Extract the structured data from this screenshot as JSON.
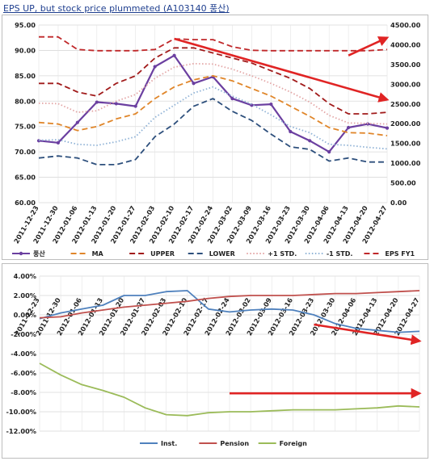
{
  "title": "EPS UP, but stock price plummeted (A103140 풍산)",
  "chart_data": [
    {
      "type": "line",
      "title": "",
      "dates": [
        "2011-12-23",
        "2011-12-30",
        "2012-01-06",
        "2012-01-13",
        "2012-01-20",
        "2012-01-27",
        "2012-02-03",
        "2012-02-10",
        "2012-02-17",
        "2012-02-24",
        "2012-03-02",
        "2012-03-09",
        "2012-03-16",
        "2012-03-23",
        "2012-03-30",
        "2012-04-06",
        "2012-04-13",
        "2012-04-20",
        "2012-04-27"
      ],
      "ylim": [
        60,
        95
      ],
      "yticks": [
        "60.00",
        "65.00",
        "70.00",
        "75.00",
        "80.00",
        "85.00",
        "90.00",
        "95.00"
      ],
      "y2lim": [
        0,
        4500
      ],
      "y2ticks": [
        "0.00",
        "500.00",
        "1000.00",
        "1500.00",
        "2000.00",
        "2500.00",
        "3000.00",
        "3500.00",
        "4000.00",
        "4500.00"
      ],
      "grid": true,
      "legend_position": "bottom",
      "series": [
        {
          "name": "풍산",
          "style": "solid-marker",
          "color": "#6b3fa0",
          "axis": "left",
          "values": [
            72.2,
            71.8,
            75.8,
            79.8,
            79.5,
            79.0,
            86.8,
            89.0,
            83.5,
            84.8,
            80.5,
            79.2,
            79.4,
            74.0,
            72.2,
            70.0,
            74.8,
            75.5,
            74.7
          ]
        },
        {
          "name": "MA",
          "style": "dash",
          "color": "#e0862a",
          "axis": "left",
          "values": [
            75.8,
            75.5,
            74.2,
            75.0,
            76.5,
            77.5,
            80.5,
            82.8,
            84.2,
            85.0,
            84.0,
            82.5,
            81.0,
            79.0,
            77.0,
            74.8,
            73.8,
            73.7,
            73.2
          ]
        },
        {
          "name": "UPPER",
          "style": "dash",
          "color": "#a11b1b",
          "axis": "left",
          "values": [
            83.5,
            83.5,
            81.8,
            81.0,
            83.5,
            85.0,
            88.5,
            90.5,
            90.5,
            89.5,
            88.5,
            87.5,
            86.0,
            84.5,
            82.5,
            79.5,
            77.5,
            77.5,
            77.8
          ]
        },
        {
          "name": "LOWER",
          "style": "dash",
          "color": "#2d4f7c",
          "axis": "left",
          "values": [
            68.8,
            69.2,
            68.8,
            67.5,
            67.5,
            68.5,
            73.0,
            75.5,
            79.0,
            80.5,
            78.0,
            76.2,
            73.5,
            71.0,
            70.5,
            68.2,
            68.8,
            68.0,
            68.0
          ]
        },
        {
          "name": "+1 STD.",
          "style": "dot",
          "color": "#e3a5a5",
          "axis": "left",
          "values": [
            79.6,
            79.5,
            77.8,
            78.1,
            80.0,
            81.3,
            84.5,
            86.7,
            87.4,
            87.3,
            86.3,
            85.0,
            83.5,
            81.8,
            79.8,
            77.2,
            75.7,
            75.6,
            75.5
          ]
        },
        {
          "name": "-1 STD.",
          "style": "dot",
          "color": "#8fb2d6",
          "axis": "left",
          "values": [
            72.3,
            72.4,
            71.5,
            71.3,
            72.0,
            73.0,
            76.8,
            79.2,
            81.6,
            82.8,
            81.0,
            79.4,
            77.3,
            75.0,
            73.8,
            71.5,
            71.3,
            70.9,
            70.6
          ]
        },
        {
          "name": "EPS FY1",
          "style": "dash",
          "color": "#c0282a",
          "axis": "right",
          "values": [
            4200,
            4200,
            3880,
            3850,
            3850,
            3850,
            3880,
            4150,
            4130,
            4130,
            3950,
            3860,
            3850,
            3850,
            3850,
            3850,
            3850,
            3850,
            3880
          ]
        }
      ],
      "annotations": [
        {
          "kind": "arrow",
          "color": "#e02424",
          "from": [
            "2012-02-10",
            92.3
          ],
          "to": [
            "2012-04-27",
            80.3
          ]
        },
        {
          "kind": "arrow",
          "color": "#e02424",
          "from": [
            "2012-04-13",
            89.0
          ],
          "to": [
            "2012-04-27",
            92.5
          ]
        }
      ]
    },
    {
      "type": "line",
      "title": "",
      "dates": [
        "2011-12-23",
        "2011-12-30",
        "2012-01-06",
        "2012-01-13",
        "2012-01-20",
        "2012-01-27",
        "2012-02-03",
        "2012-02-10",
        "2012-02-17",
        "2012-02-24",
        "2012-03-02",
        "2012-03-09",
        "2012-03-16",
        "2012-03-23",
        "2012-03-30",
        "2012-04-06",
        "2012-04-13",
        "2012-04-20",
        "2012-04-27"
      ],
      "ylim": [
        -12,
        4
      ],
      "yticks": [
        "-12.00%",
        "-10.00%",
        "-8.00%",
        "-6.00%",
        "-4.00%",
        "-2.00%",
        "0.00%",
        "2.00%",
        "4.00%"
      ],
      "grid": true,
      "legend_position": "bottom",
      "series": [
        {
          "name": "Inst.",
          "color": "#4f81bd",
          "values": [
            -0.4,
            0.2,
            0.6,
            1.0,
            2.0,
            2.0,
            2.4,
            2.5,
            0.6,
            0.3,
            0.5,
            0.6,
            0.5,
            0.0,
            -0.9,
            -1.4,
            -1.6,
            -1.8,
            -1.7
          ]
        },
        {
          "name": "Pension",
          "color": "#c0504d",
          "values": [
            -0.3,
            -0.2,
            0.2,
            0.5,
            0.8,
            1.0,
            1.2,
            1.4,
            1.7,
            1.9,
            2.0,
            2.0,
            2.0,
            2.1,
            2.2,
            2.2,
            2.3,
            2.4,
            2.5
          ]
        },
        {
          "name": "Foreign",
          "color": "#9bbb59",
          "values": [
            -5.0,
            -6.2,
            -7.2,
            -7.8,
            -8.5,
            -9.6,
            -10.3,
            -10.4,
            -10.1,
            -10.0,
            -10.0,
            -9.9,
            -9.8,
            -9.8,
            -9.8,
            -9.7,
            -9.6,
            -9.4,
            -9.5
          ]
        }
      ],
      "annotations": [
        {
          "kind": "arrow",
          "color": "#e02424",
          "from": [
            "2012-03-23",
            -1.0
          ],
          "to": [
            "2012-04-27",
            -2.7
          ]
        },
        {
          "kind": "arrow",
          "color": "#e02424",
          "from": [
            "2012-02-24",
            -8.1
          ],
          "to": [
            "2012-04-27",
            -8.1
          ]
        }
      ]
    }
  ]
}
